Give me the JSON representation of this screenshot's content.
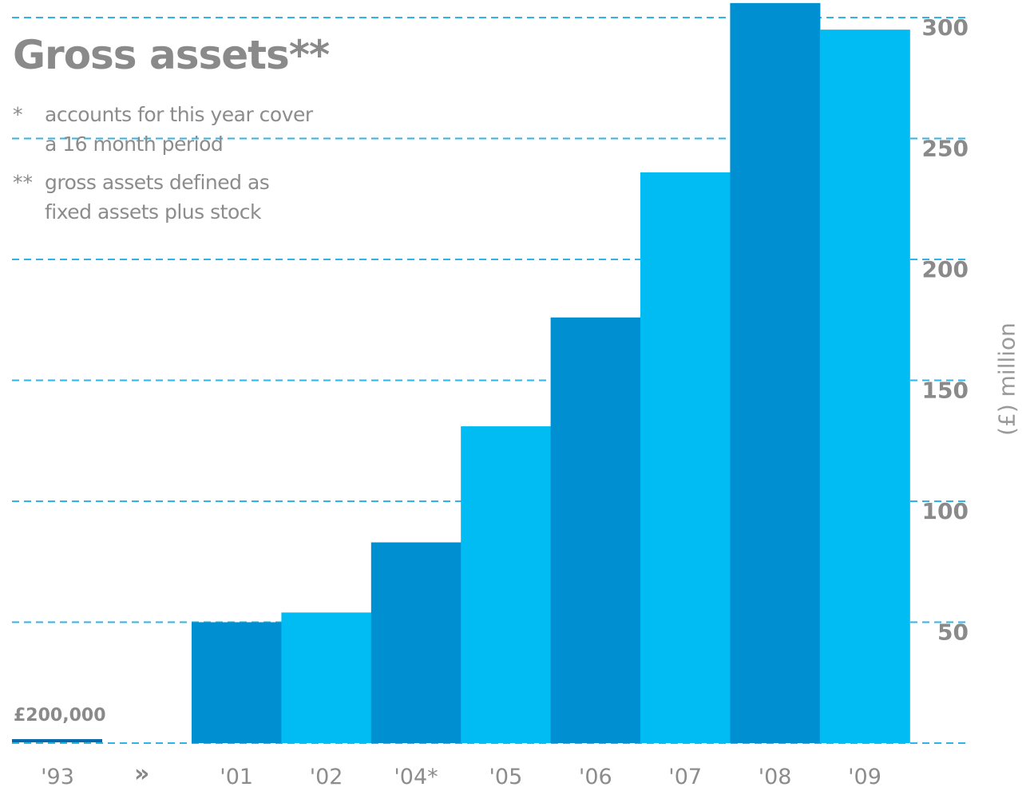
{
  "chart_data": {
    "type": "bar",
    "title": "Gross assets**",
    "footnotes": [
      {
        "mark": "*",
        "lines": [
          "accounts for this year cover",
          "a 16 month period"
        ]
      },
      {
        "mark": "**",
        "lines": [
          "gross assets defined as",
          "fixed assets plus stock"
        ]
      }
    ],
    "ylabel": "(£) million",
    "ylim": [
      0,
      305
    ],
    "yticks": [
      50,
      100,
      150,
      200,
      250,
      300
    ],
    "grid": true,
    "categories": [
      "'01",
      "'02",
      "'04*",
      "'05",
      "'06",
      "'07",
      "'08",
      "'09"
    ],
    "values": [
      50,
      54,
      83,
      131,
      176,
      236,
      306,
      295
    ],
    "separate_category": {
      "label": "'93",
      "value_label": "£200,000"
    },
    "axis_break_symbol": "»",
    "colors": {
      "dark": "#008fd0",
      "light": "#00bcf2",
      "grid": "#2fb5e3",
      "axis_text": "#8a8a8a",
      "small_bar": "#0a6aa8"
    },
    "bar_color_pattern": [
      "dark",
      "light",
      "dark",
      "light",
      "dark",
      "light",
      "dark",
      "light"
    ]
  }
}
